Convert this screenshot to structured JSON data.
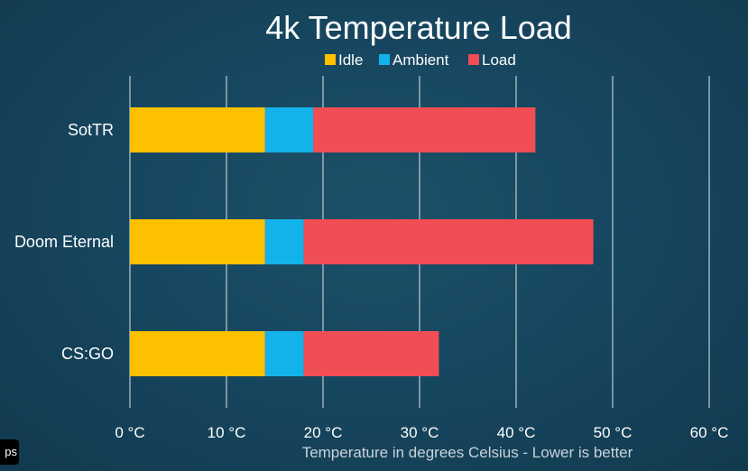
{
  "corner_badge": "ps",
  "chart_data": {
    "type": "bar",
    "orientation": "horizontal",
    "stacked": true,
    "title": "4k Temperature Load",
    "xlabel": "Temperature in degrees Celsius - Lower is better",
    "ylabel": "",
    "categories": [
      "SotTR",
      "Doom Eternal",
      "CS:GO"
    ],
    "series": [
      {
        "name": "Idle",
        "color": "#fdc100",
        "values": [
          14,
          14,
          14
        ]
      },
      {
        "name": "Ambient",
        "color": "#12b3ea",
        "values": [
          5,
          4,
          4
        ]
      },
      {
        "name": "Load",
        "color": "#f04e54",
        "values": [
          23,
          30,
          14
        ]
      }
    ],
    "xlim": [
      0,
      60
    ],
    "xticks": [
      "0 °C",
      "10 °C",
      "20 °C",
      "30 °C",
      "40 °C",
      "50 °C",
      "60 °C"
    ],
    "legend_position": "top-center",
    "grid": true
  }
}
